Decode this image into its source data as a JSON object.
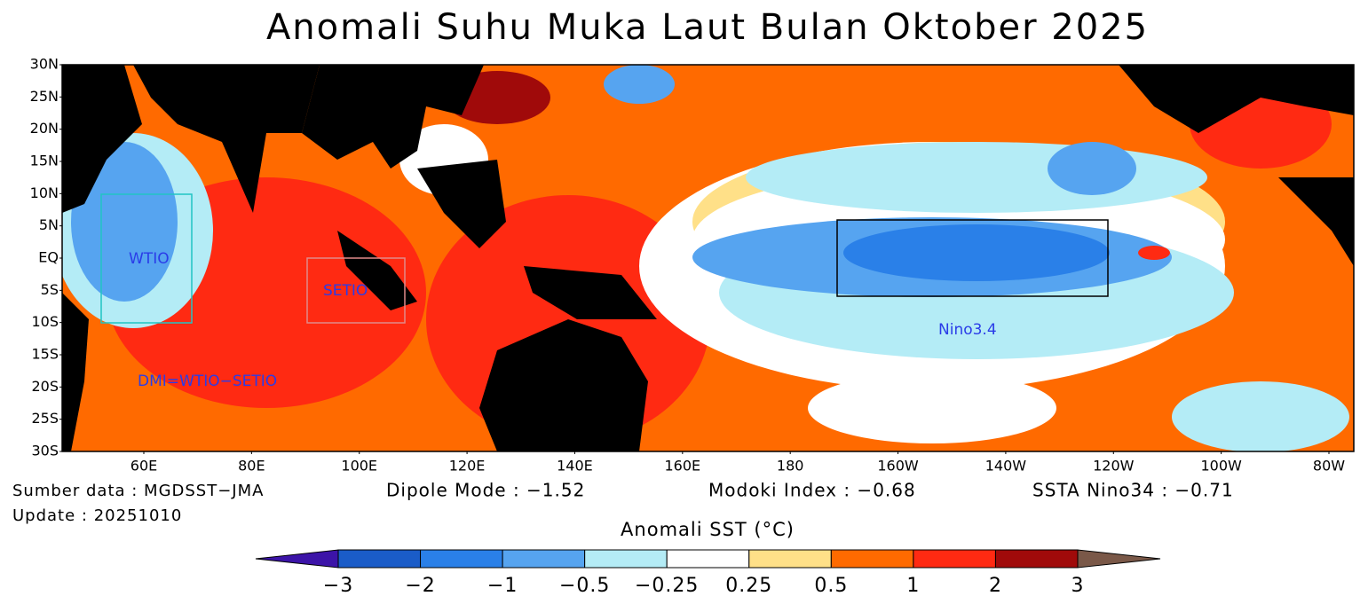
{
  "title": "Anomali Suhu Muka Laut Bulan Oktober 2025",
  "map": {
    "lat_labels": [
      "30N",
      "25N",
      "20N",
      "15N",
      "10N",
      "5N",
      "EQ",
      "5S",
      "10S",
      "15S",
      "20S",
      "25S",
      "30S"
    ],
    "lon_labels": [
      "60E",
      "80E",
      "100E",
      "120E",
      "140E",
      "160E",
      "180",
      "160W",
      "140W",
      "120W",
      "100W",
      "80W"
    ],
    "boxes": [
      {
        "label": "WTIO",
        "color": "#20c4c4"
      },
      {
        "label": "SETIO",
        "color": "#e08a8a"
      },
      {
        "label": "Nino3.4",
        "color": "#000000"
      }
    ],
    "annotation": "DMI=WTIO−SETIO"
  },
  "footer": {
    "source": "Sumber data : MGDSST−JMA",
    "update": "Update : 20251010",
    "dipole": "Dipole Mode : −1.52",
    "modoki": "Modoki Index : −0.68",
    "nino34": "SSTA Nino34 : −0.71"
  },
  "colorbar": {
    "title": "Anomali SST (°C)",
    "ticks": [
      "−3",
      "−2",
      "−1",
      "−0.5",
      "−0.25",
      "0.25",
      "0.5",
      "1",
      "2",
      "3"
    ],
    "colors": [
      "#3c14a8",
      "#1a5cc8",
      "#2a80e8",
      "#56a4f0",
      "#b4ecf6",
      "#ffffff",
      "#ffe088",
      "#ff6a00",
      "#ff2a12",
      "#a00a0a",
      "#7a5848"
    ]
  }
}
